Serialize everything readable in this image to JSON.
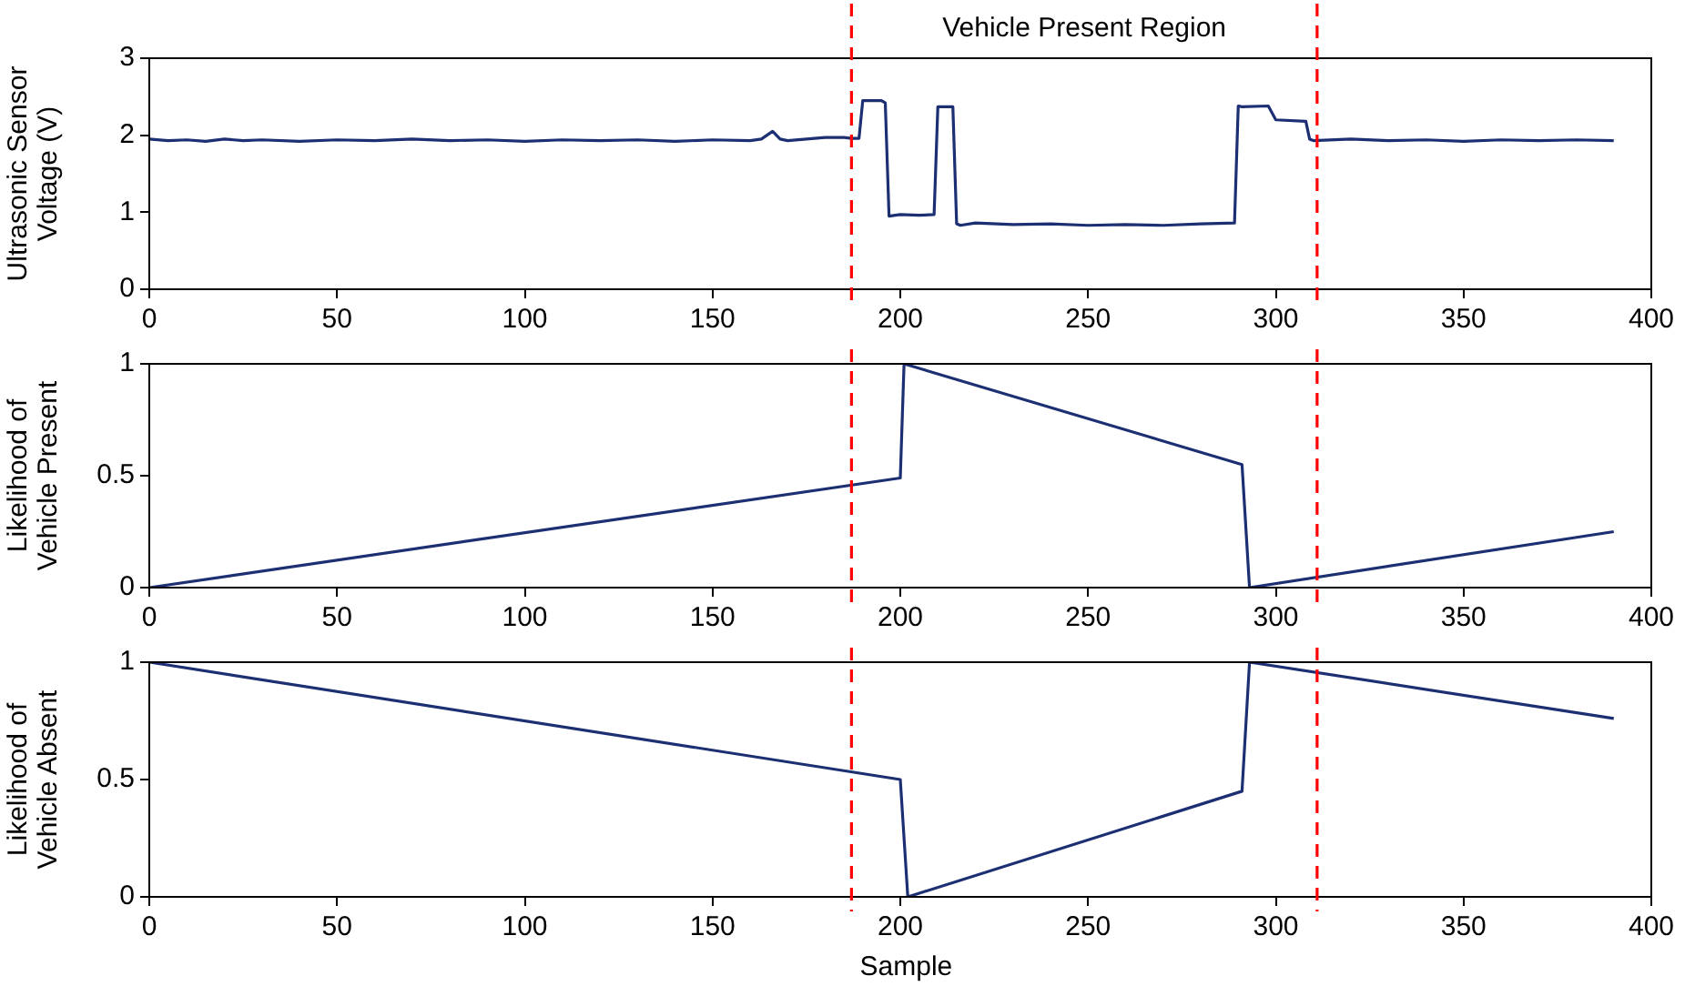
{
  "chart_data": [
    {
      "type": "line",
      "ylabel": "Ultrasonic Sensor Voltage (V)",
      "annotations": [
        "Vehicle Present Region"
      ],
      "grid": false,
      "legend": false,
      "marker": "none",
      "line_style": "solid",
      "xlim": [
        0,
        400
      ],
      "xticks": [
        0,
        50,
        100,
        150,
        200,
        250,
        300,
        350,
        400
      ],
      "ylim": [
        0,
        3
      ],
      "yticks": [
        0,
        1,
        2,
        3
      ],
      "x": [
        0,
        5,
        10,
        15,
        20,
        25,
        30,
        40,
        50,
        60,
        70,
        80,
        90,
        100,
        110,
        120,
        130,
        140,
        150,
        160,
        163,
        166,
        168,
        170,
        175,
        180,
        185,
        187,
        189,
        190,
        195,
        196,
        197,
        200,
        205,
        209,
        210,
        214,
        215,
        216,
        220,
        230,
        240,
        250,
        260,
        270,
        280,
        289,
        290,
        291,
        298,
        300,
        308,
        309,
        310,
        320,
        330,
        340,
        350,
        360,
        370,
        380,
        390
      ],
      "series": [
        {
          "color": "#1c2f73",
          "values": [
            1.95,
            1.93,
            1.94,
            1.92,
            1.95,
            1.93,
            1.94,
            1.92,
            1.94,
            1.93,
            1.95,
            1.93,
            1.94,
            1.92,
            1.94,
            1.93,
            1.94,
            1.92,
            1.94,
            1.93,
            1.95,
            2.05,
            1.95,
            1.93,
            1.95,
            1.97,
            1.97,
            1.96,
            1.96,
            2.45,
            2.45,
            2.42,
            0.95,
            0.97,
            0.96,
            0.97,
            2.37,
            2.37,
            0.85,
            0.83,
            0.86,
            0.84,
            0.85,
            0.83,
            0.84,
            0.83,
            0.85,
            0.86,
            2.38,
            2.37,
            2.38,
            2.2,
            2.18,
            1.95,
            1.93,
            1.95,
            1.93,
            1.94,
            1.92,
            1.94,
            1.93,
            1.94,
            1.93
          ]
        }
      ],
      "ref_lines": [
        {
          "axis": "x",
          "value": 187,
          "color": "#ff0000",
          "line_style": "dashed"
        },
        {
          "axis": "x",
          "value": 311,
          "color": "#ff0000",
          "line_style": "dashed"
        }
      ]
    },
    {
      "type": "line",
      "ylabel": "Likelihood of Vehicle Present",
      "grid": false,
      "legend": false,
      "marker": "none",
      "line_style": "solid",
      "xlim": [
        0,
        400
      ],
      "xticks": [
        0,
        50,
        100,
        150,
        200,
        250,
        300,
        350,
        400
      ],
      "ylim": [
        0,
        1
      ],
      "yticks": [
        0,
        0.5,
        1
      ],
      "x": [
        0,
        200,
        201,
        291,
        293,
        390
      ],
      "series": [
        {
          "color": "#1c2f73",
          "values": [
            0,
            0.49,
            1,
            0.55,
            0,
            0.25
          ]
        }
      ],
      "ref_lines": [
        {
          "axis": "x",
          "value": 187,
          "color": "#ff0000",
          "line_style": "dashed"
        },
        {
          "axis": "x",
          "value": 311,
          "color": "#ff0000",
          "line_style": "dashed"
        }
      ]
    },
    {
      "type": "line",
      "xlabel": "Sample",
      "ylabel": "Likelihood of Vehicle Absent",
      "grid": false,
      "legend": false,
      "marker": "none",
      "line_style": "solid",
      "xlim": [
        0,
        400
      ],
      "xticks": [
        0,
        50,
        100,
        150,
        200,
        250,
        300,
        350,
        400
      ],
      "ylim": [
        0,
        1
      ],
      "yticks": [
        0,
        0.5,
        1
      ],
      "x": [
        0,
        200,
        202,
        291,
        293,
        390
      ],
      "series": [
        {
          "color": "#1c2f73",
          "values": [
            1,
            0.5,
            0,
            0.45,
            1,
            0.76
          ]
        }
      ],
      "ref_lines": [
        {
          "axis": "x",
          "value": 187,
          "color": "#ff0000",
          "line_style": "dashed"
        },
        {
          "axis": "x",
          "value": 311,
          "color": "#ff0000",
          "line_style": "dashed"
        }
      ]
    }
  ]
}
